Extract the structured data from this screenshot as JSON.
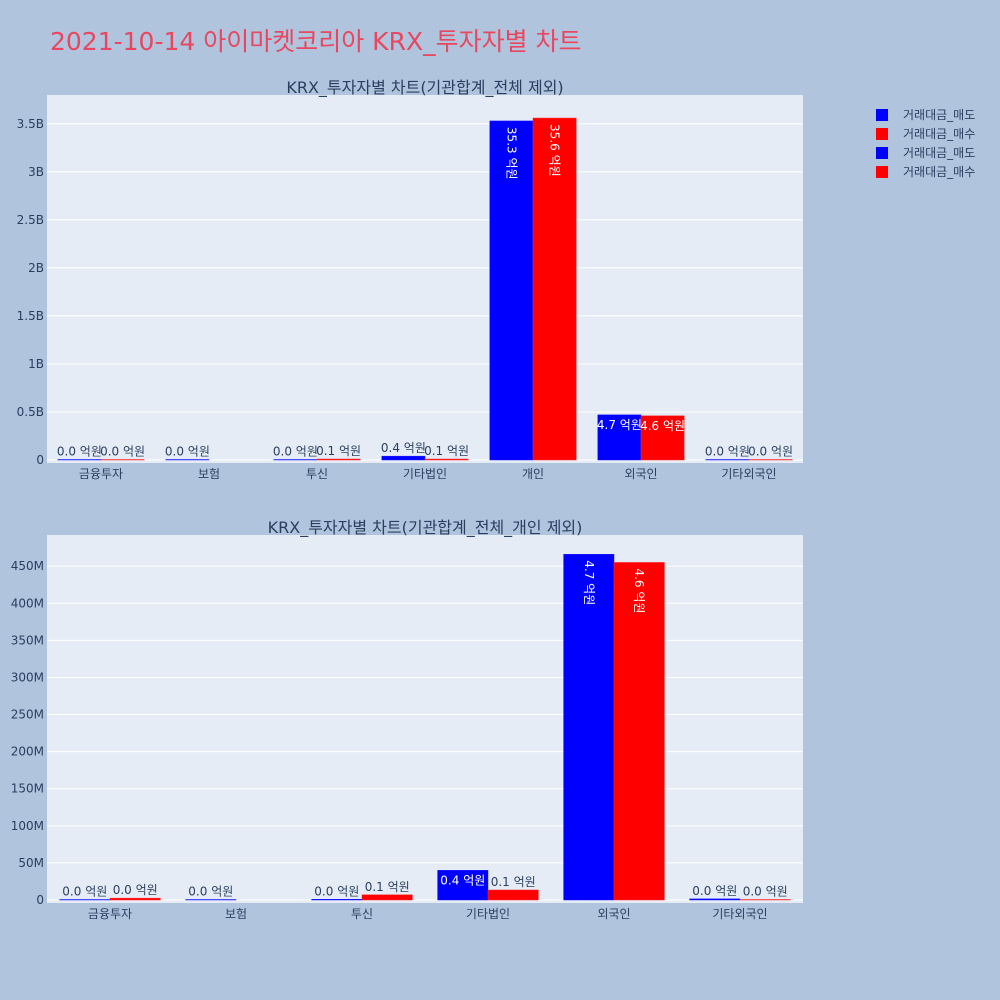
{
  "title": "2021-10-14 아이마켓코리아 KRX_투자자별 차트",
  "legend": [
    {
      "label": "거래대금_매도",
      "color": "#0000ff"
    },
    {
      "label": "거래대금_매수",
      "color": "#ff0000"
    },
    {
      "label": "거래대금_매도",
      "color": "#0000ff"
    },
    {
      "label": "거래대금_매수",
      "color": "#ff0000"
    }
  ],
  "chart_data": [
    {
      "type": "bar",
      "title": "KRX_투자자별 차트(기관합계_전체 제외)",
      "categories": [
        "금융투자",
        "보험",
        "투신",
        "기타법인",
        "개인",
        "외국인",
        "기타외국인"
      ],
      "series": [
        {
          "name": "거래대금_매도",
          "color": "#0000ff",
          "values": [
            0,
            0,
            0,
            40000000,
            3530000000,
            470000000,
            0
          ],
          "labels": [
            "0.0 억원",
            "0.0 억원",
            "0.0 억원",
            "0.4 억원",
            "35.3 억원",
            "4.7 억원",
            "0.0 억원"
          ]
        },
        {
          "name": "거래대금_매수",
          "color": "#ff0000",
          "values": [
            0,
            null,
            10000000,
            10000000,
            3560000000,
            460000000,
            0
          ],
          "labels": [
            "0.0 억원",
            "",
            "0.1 억원",
            "0.1 억원",
            "35.6 억원",
            "4.6 억원",
            "0.0 억원"
          ]
        }
      ],
      "ylim": [
        0,
        3800000000
      ],
      "yticks": [
        0,
        500000000,
        1000000000,
        1500000000,
        2000000000,
        2500000000,
        3000000000,
        3500000000
      ],
      "ytick_labels": [
        "0",
        "0.5B",
        "1B",
        "1.5B",
        "2B",
        "2.5B",
        "3B",
        "3.5B"
      ]
    },
    {
      "type": "bar",
      "title": "KRX_투자자별 차트(기관합계_전체_개인 제외)",
      "categories": [
        "금융투자",
        "보험",
        "투신",
        "기타법인",
        "외국인",
        "기타외국인"
      ],
      "series": [
        {
          "name": "거래대금_매도",
          "color": "#0000ff",
          "values": [
            500000,
            500000,
            1000000,
            40000000,
            466000000,
            1500000
          ],
          "labels": [
            "0.0 억원",
            "0.0 억원",
            "0.0 억원",
            "0.4 억원",
            "4.7 억원",
            "0.0 억원"
          ]
        },
        {
          "name": "거래대금_매수",
          "color": "#ff0000",
          "values": [
            2500000,
            null,
            7000000,
            13500000,
            455000000,
            200000
          ],
          "labels": [
            "0.0 억원",
            "",
            "0.1 억원",
            "0.1 억원",
            "4.6 억원",
            "0.0 억원"
          ]
        }
      ],
      "ylim": [
        0,
        492000000
      ],
      "yticks": [
        0,
        50000000,
        100000000,
        150000000,
        200000000,
        250000000,
        300000000,
        350000000,
        400000000,
        450000000
      ],
      "ytick_labels": [
        "0",
        "50M",
        "100M",
        "150M",
        "200M",
        "250M",
        "300M",
        "350M",
        "400M",
        "450M"
      ]
    }
  ]
}
